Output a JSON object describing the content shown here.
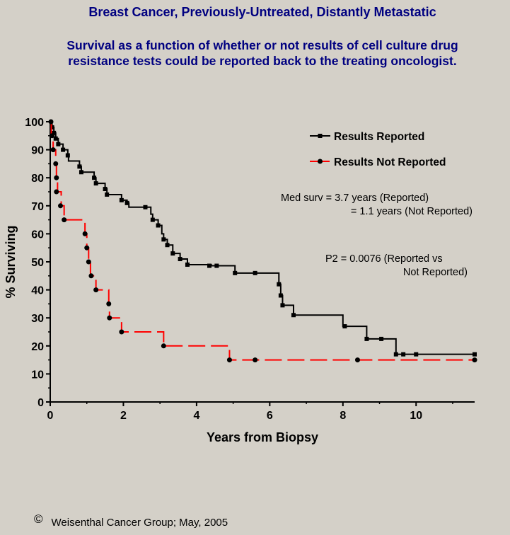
{
  "title": "Breast Cancer, Previously-Untreated, Distantly Metastatic",
  "subtitle": "Survival as a function of whether or not results of cell culture drug resistance tests could be reported back to the treating oncologist.",
  "footer": {
    "copyright_symbol": "©",
    "text": "Weisenthal Cancer Group; May, 2005"
  },
  "chart_data": {
    "type": "line",
    "subtype": "kaplan-meier step plot",
    "xlabel": "Years from Biopsy",
    "ylabel": "% Surviving",
    "xlim": [
      0,
      11.6
    ],
    "ylim": [
      0,
      100
    ],
    "xticks": [
      0,
      2,
      4,
      6,
      8,
      10
    ],
    "yticks": [
      0,
      10,
      20,
      30,
      40,
      50,
      60,
      70,
      80,
      90,
      100
    ],
    "grid": false,
    "legend_position": "top-right",
    "series": [
      {
        "name": "Results Reported",
        "color": "#000000",
        "line_style": "solid",
        "marker": "square",
        "steps": [
          [
            0,
            100
          ],
          [
            0.05,
            98
          ],
          [
            0.1,
            96
          ],
          [
            0.15,
            94
          ],
          [
            0.22,
            92
          ],
          [
            0.35,
            90
          ],
          [
            0.48,
            88
          ],
          [
            0.5,
            86
          ],
          [
            0.8,
            84
          ],
          [
            0.85,
            82
          ],
          [
            1.2,
            80
          ],
          [
            1.25,
            78
          ],
          [
            1.5,
            76
          ],
          [
            1.55,
            74
          ],
          [
            1.95,
            72
          ],
          [
            2.1,
            71
          ],
          [
            2.15,
            69.5
          ],
          [
            2.65,
            69.5
          ],
          [
            2.75,
            67
          ],
          [
            2.8,
            65
          ],
          [
            2.95,
            63
          ],
          [
            3.05,
            60
          ],
          [
            3.1,
            58
          ],
          [
            3.2,
            56
          ],
          [
            3.35,
            53
          ],
          [
            3.55,
            51
          ],
          [
            3.75,
            49
          ],
          [
            4.4,
            48.6
          ],
          [
            5.05,
            46
          ],
          [
            6.2,
            46
          ],
          [
            6.25,
            42
          ],
          [
            6.3,
            38
          ],
          [
            6.35,
            34.5
          ],
          [
            6.65,
            31
          ],
          [
            8.0,
            27
          ],
          [
            8.65,
            22.5
          ],
          [
            9.45,
            17
          ],
          [
            11.6,
            17
          ]
        ],
        "markers": [
          [
            0.05,
            98
          ],
          [
            0.1,
            96
          ],
          [
            0.15,
            94
          ],
          [
            0.22,
            92
          ],
          [
            0.35,
            90
          ],
          [
            0.48,
            88
          ],
          [
            0.8,
            84
          ],
          [
            0.85,
            82
          ],
          [
            1.2,
            80
          ],
          [
            1.25,
            78
          ],
          [
            1.5,
            76
          ],
          [
            1.55,
            74
          ],
          [
            1.95,
            72
          ],
          [
            2.1,
            71
          ],
          [
            2.6,
            69.5
          ],
          [
            2.8,
            65
          ],
          [
            2.95,
            63
          ],
          [
            3.1,
            58
          ],
          [
            3.2,
            56
          ],
          [
            3.35,
            53
          ],
          [
            3.55,
            51
          ],
          [
            3.75,
            49
          ],
          [
            4.35,
            48.6
          ],
          [
            4.55,
            48.6
          ],
          [
            5.05,
            46
          ],
          [
            5.6,
            46
          ],
          [
            6.25,
            42
          ],
          [
            6.3,
            38
          ],
          [
            6.35,
            34.5
          ],
          [
            6.65,
            31
          ],
          [
            8.05,
            27
          ],
          [
            8.65,
            22.5
          ],
          [
            9.05,
            22.5
          ],
          [
            9.45,
            17
          ],
          [
            9.65,
            17
          ],
          [
            10.0,
            17
          ],
          [
            11.6,
            17
          ]
        ]
      },
      {
        "name": "Results Not Reported",
        "color": "#ff0000",
        "line_style": "dashed",
        "marker": "circle",
        "steps": [
          [
            0,
            100
          ],
          [
            0.03,
            95
          ],
          [
            0.08,
            90
          ],
          [
            0.15,
            85
          ],
          [
            0.17,
            80
          ],
          [
            0.2,
            75
          ],
          [
            0.3,
            70
          ],
          [
            0.38,
            65
          ],
          [
            0.95,
            60
          ],
          [
            1.0,
            55
          ],
          [
            1.05,
            50
          ],
          [
            1.1,
            45
          ],
          [
            1.25,
            40
          ],
          [
            1.6,
            35
          ],
          [
            1.62,
            30
          ],
          [
            1.95,
            25
          ],
          [
            3.1,
            20
          ],
          [
            4.9,
            15
          ],
          [
            11.6,
            15
          ]
        ],
        "markers": [
          [
            0.02,
            100
          ],
          [
            0.05,
            95
          ],
          [
            0.08,
            90
          ],
          [
            0.15,
            85
          ],
          [
            0.17,
            80
          ],
          [
            0.17,
            75
          ],
          [
            0.28,
            70
          ],
          [
            0.38,
            65
          ],
          [
            0.95,
            60
          ],
          [
            1.0,
            55
          ],
          [
            1.05,
            50
          ],
          [
            1.12,
            45
          ],
          [
            1.25,
            40
          ],
          [
            1.6,
            35
          ],
          [
            1.62,
            30
          ],
          [
            1.95,
            25
          ],
          [
            3.1,
            20
          ],
          [
            4.9,
            15
          ],
          [
            5.6,
            15
          ],
          [
            8.4,
            15
          ],
          [
            11.6,
            15
          ]
        ]
      }
    ],
    "annotations": [
      {
        "id": "median",
        "lines": [
          "Med surv =  3.7 years (Reported)",
          "=  1.1 years (Not Reported)"
        ]
      },
      {
        "id": "p-value",
        "lines": [
          "P2 = 0.0076 (Reported vs",
          "Not Reported)"
        ]
      }
    ]
  }
}
